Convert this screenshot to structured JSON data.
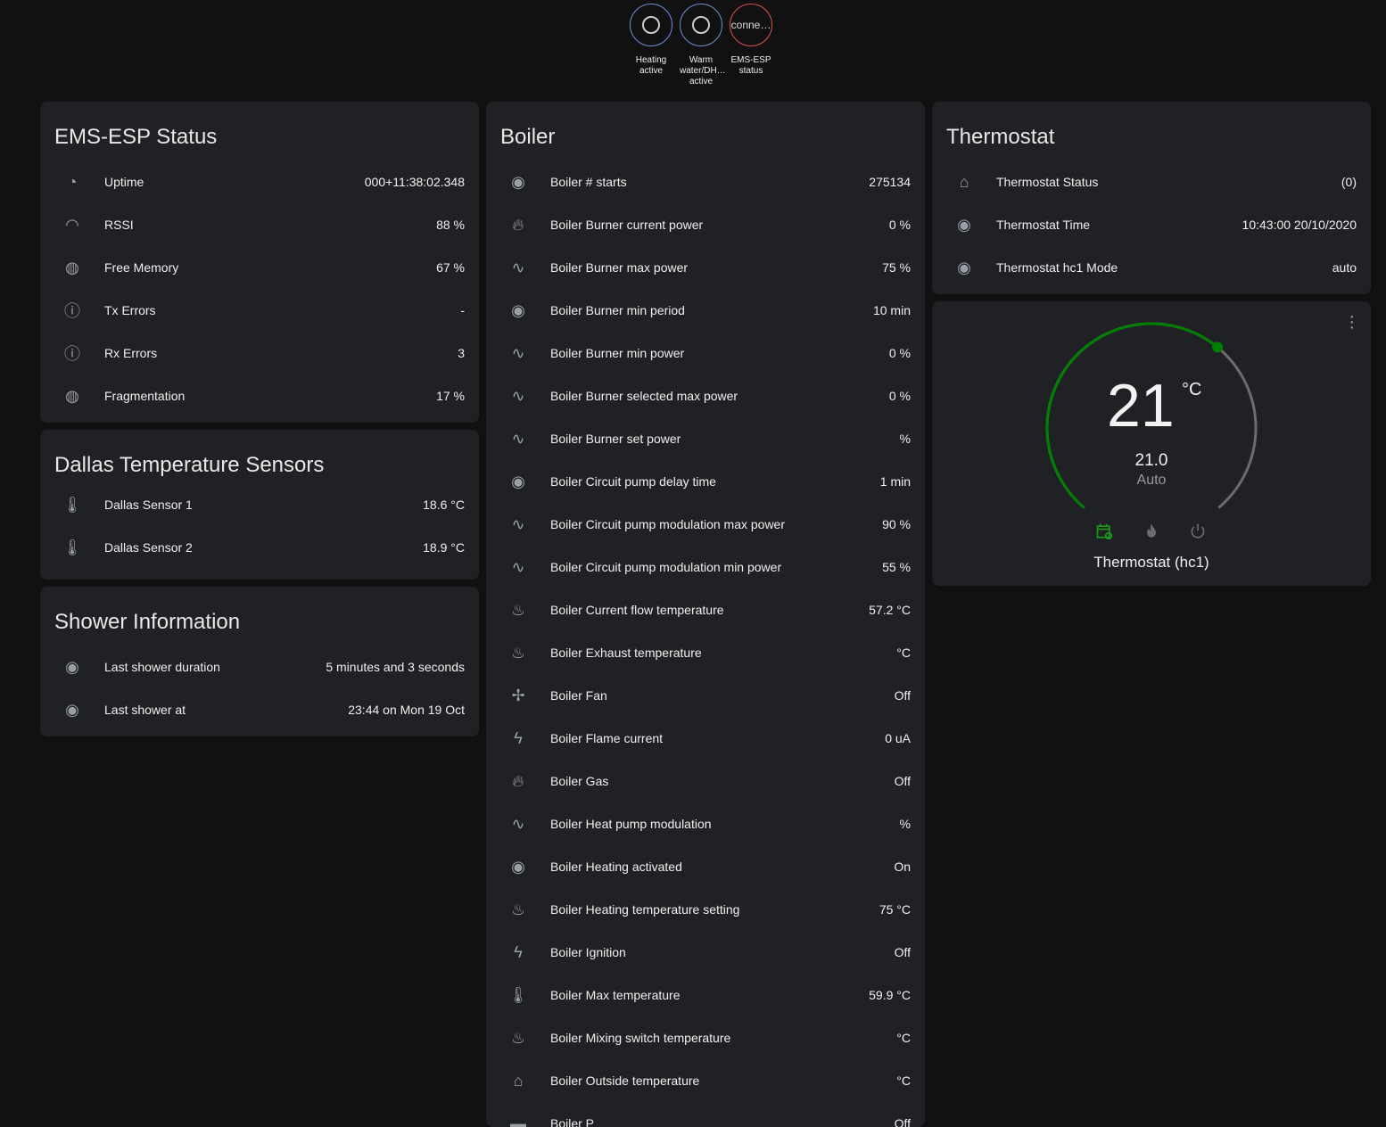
{
  "badges": [
    {
      "label": "Heating active",
      "value": "",
      "color": "#6f8fd9"
    },
    {
      "label": "Warm water/DH… active",
      "value": "",
      "color": "#6f8fd9"
    },
    {
      "label": "EMS-ESP status",
      "value": "conne…",
      "color": "#d9534f"
    }
  ],
  "ems_status": {
    "title": "EMS-ESP Status",
    "rows": [
      {
        "icon": "timer-icon",
        "name": "Uptime",
        "value": "000+11:38:02.348"
      },
      {
        "icon": "wifi-icon",
        "name": "RSSI",
        "value": "88 %"
      },
      {
        "icon": "gauge-icon",
        "name": "Free Memory",
        "value": "67 %"
      },
      {
        "icon": "alert-circle-icon",
        "name": "Tx Errors",
        "value": "-"
      },
      {
        "icon": "alert-circle-icon",
        "name": "Rx Errors",
        "value": "3"
      },
      {
        "icon": "gauge-icon",
        "name": "Fragmentation",
        "value": "17 %"
      }
    ]
  },
  "dallas": {
    "title": "Dallas Temperature Sensors",
    "rows": [
      {
        "icon": "thermometer-icon",
        "name": "Dallas Sensor 1",
        "value": "18.6 °C"
      },
      {
        "icon": "thermometer-icon",
        "name": "Dallas Sensor 2",
        "value": "18.9 °C"
      }
    ]
  },
  "shower": {
    "title": "Shower Information",
    "rows": [
      {
        "icon": "eye-icon",
        "name": "Last shower duration",
        "value": "5 minutes and 3 seconds"
      },
      {
        "icon": "eye-icon",
        "name": "Last shower at",
        "value": "23:44 on Mon 19 Oct"
      }
    ]
  },
  "boiler": {
    "title": "Boiler",
    "rows": [
      {
        "icon": "eye-icon",
        "name": "Boiler # starts",
        "value": "275134"
      },
      {
        "icon": "fire-icon",
        "name": "Boiler Burner current power",
        "value": "0 %"
      },
      {
        "icon": "sine-wave-icon",
        "name": "Boiler Burner max power",
        "value": "75 %"
      },
      {
        "icon": "eye-icon",
        "name": "Boiler Burner min period",
        "value": "10 min"
      },
      {
        "icon": "sine-wave-icon",
        "name": "Boiler Burner min power",
        "value": "0 %"
      },
      {
        "icon": "sine-wave-icon",
        "name": "Boiler Burner selected max power",
        "value": "0 %"
      },
      {
        "icon": "sine-wave-icon",
        "name": "Boiler Burner set power",
        "value": "%"
      },
      {
        "icon": "eye-icon",
        "name": "Boiler Circuit pump delay time",
        "value": "1 min"
      },
      {
        "icon": "sine-wave-icon",
        "name": "Boiler Circuit pump modulation max power",
        "value": "90 %"
      },
      {
        "icon": "sine-wave-icon",
        "name": "Boiler Circuit pump modulation min power",
        "value": "55 %"
      },
      {
        "icon": "water-thermometer-icon",
        "name": "Boiler Current flow temperature",
        "value": "57.2 °C"
      },
      {
        "icon": "water-thermometer-icon",
        "name": "Boiler Exhaust temperature",
        "value": "°C"
      },
      {
        "icon": "fan-icon",
        "name": "Boiler Fan",
        "value": "Off"
      },
      {
        "icon": "flash-icon",
        "name": "Boiler Flame current",
        "value": "0 uA"
      },
      {
        "icon": "fire-icon",
        "name": "Boiler Gas",
        "value": "Off"
      },
      {
        "icon": "sine-wave-icon",
        "name": "Boiler Heat pump modulation",
        "value": "%"
      },
      {
        "icon": "eye-icon",
        "name": "Boiler Heating activated",
        "value": "On"
      },
      {
        "icon": "water-thermometer-icon",
        "name": "Boiler Heating temperature setting",
        "value": "75 °C"
      },
      {
        "icon": "flash-icon",
        "name": "Boiler Ignition",
        "value": "Off"
      },
      {
        "icon": "thermometer-icon",
        "name": "Boiler Max temperature",
        "value": "59.9 °C"
      },
      {
        "icon": "water-thermometer-icon",
        "name": "Boiler Mixing switch temperature",
        "value": "°C"
      },
      {
        "icon": "home-export-icon",
        "name": "Boiler Outside temperature",
        "value": "°C"
      },
      {
        "icon": "pump-icon",
        "name": "Boiler P",
        "value": "Off"
      }
    ]
  },
  "thermostat": {
    "title": "Thermostat",
    "rows": [
      {
        "icon": "home-thermometer-icon",
        "name": "Thermostat Status",
        "value": "(0)"
      },
      {
        "icon": "eye-icon",
        "name": "Thermostat Time",
        "value": "10:43:00 20/10/2020"
      },
      {
        "icon": "eye-icon",
        "name": "Thermostat hc1 Mode",
        "value": "auto"
      }
    ]
  },
  "climate": {
    "current": "21",
    "unit": "°C",
    "target": "21.0",
    "mode": "Auto",
    "name": "Thermostat (hc1)",
    "level": 0.64,
    "accent": "#008000"
  }
}
